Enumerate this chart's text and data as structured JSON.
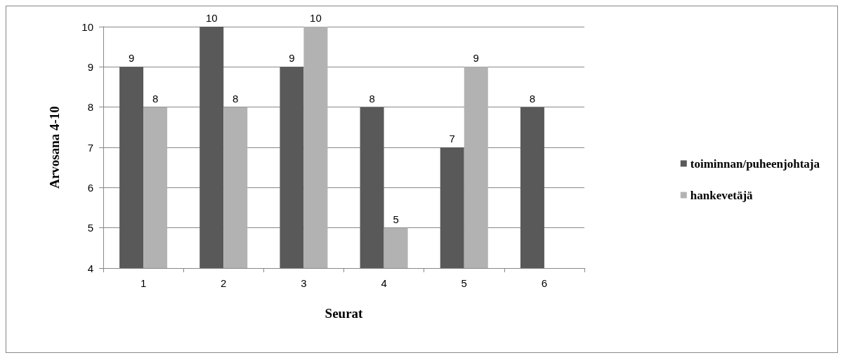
{
  "chart_data": {
    "type": "bar",
    "xlabel": "Seurat",
    "ylabel": "Arvosana 4-10",
    "categories": [
      "1",
      "2",
      "3",
      "4",
      "5",
      "6"
    ],
    "series": [
      {
        "name": "toiminnan/puheenjohtaja",
        "color": "#595959",
        "values": [
          9,
          10,
          9,
          8,
          7,
          8
        ]
      },
      {
        "name": "hankevetäjä",
        "color": "#b2b2b2",
        "values": [
          8,
          8,
          10,
          5,
          9,
          null
        ]
      }
    ],
    "ylim": [
      4,
      10
    ],
    "yticks": [
      4,
      5,
      6,
      7,
      8,
      9,
      10
    ],
    "grid": "y",
    "legend": "right",
    "data_labels": true
  }
}
